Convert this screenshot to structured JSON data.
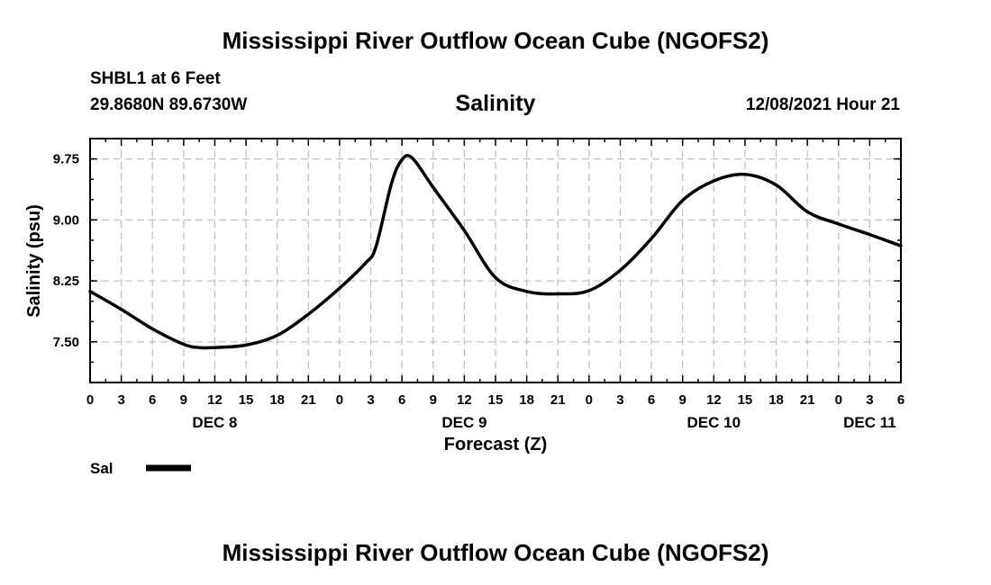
{
  "header": {
    "main_title": "Mississippi River Outflow Ocean Cube (NGOFS2)",
    "station": "SHBL1 at 6 Feet",
    "coordinates": "29.8680N  89.6730W",
    "chart_title": "Salinity",
    "datetime": "12/08/2021 Hour 21"
  },
  "footer": {
    "title": "Mississippi River Outflow Ocean Cube (NGOFS2)"
  },
  "chart_data": {
    "type": "line",
    "title": "Salinity",
    "xlabel": "Forecast (Z)",
    "ylabel": "Salinity (psu)",
    "xlim": [
      0,
      78
    ],
    "ylim": [
      7.0,
      10.0
    ],
    "grid": true,
    "x_tick_labels": [
      "0",
      "3",
      "6",
      "9",
      "12",
      "15",
      "18",
      "21",
      "0",
      "3",
      "6",
      "9",
      "12",
      "15",
      "18",
      "21",
      "0",
      "3",
      "6",
      "9",
      "12",
      "15",
      "18",
      "21",
      "0",
      "3",
      "6"
    ],
    "y_ticks": [
      7.5,
      8.25,
      9.0,
      9.75
    ],
    "y_tick_labels": [
      "7.50",
      "8.25",
      "9.00",
      "9.75"
    ],
    "day_labels": [
      {
        "label": "DEC 8",
        "x": 12
      },
      {
        "label": "DEC 9",
        "x": 36
      },
      {
        "label": "DEC 10",
        "x": 60
      },
      {
        "label": "DEC 11",
        "x": 75
      }
    ],
    "legend": {
      "label": "Sal",
      "placement": "bottom-left"
    },
    "series": [
      {
        "name": "Sal",
        "x": [
          0,
          3,
          6,
          9,
          10.5,
          12,
          15,
          18,
          21,
          24,
          26.5,
          27.5,
          29,
          30,
          31,
          33,
          36,
          39,
          42,
          45,
          48,
          51,
          54,
          57,
          60,
          63,
          66,
          69,
          72,
          75,
          78
        ],
        "values": [
          8.12,
          7.9,
          7.66,
          7.47,
          7.43,
          7.43,
          7.46,
          7.58,
          7.84,
          8.16,
          8.47,
          8.67,
          9.45,
          9.74,
          9.76,
          9.4,
          8.87,
          8.29,
          8.12,
          8.09,
          8.13,
          8.38,
          8.77,
          9.24,
          9.48,
          9.56,
          9.43,
          9.1,
          8.95,
          8.82,
          8.68
        ]
      }
    ]
  }
}
